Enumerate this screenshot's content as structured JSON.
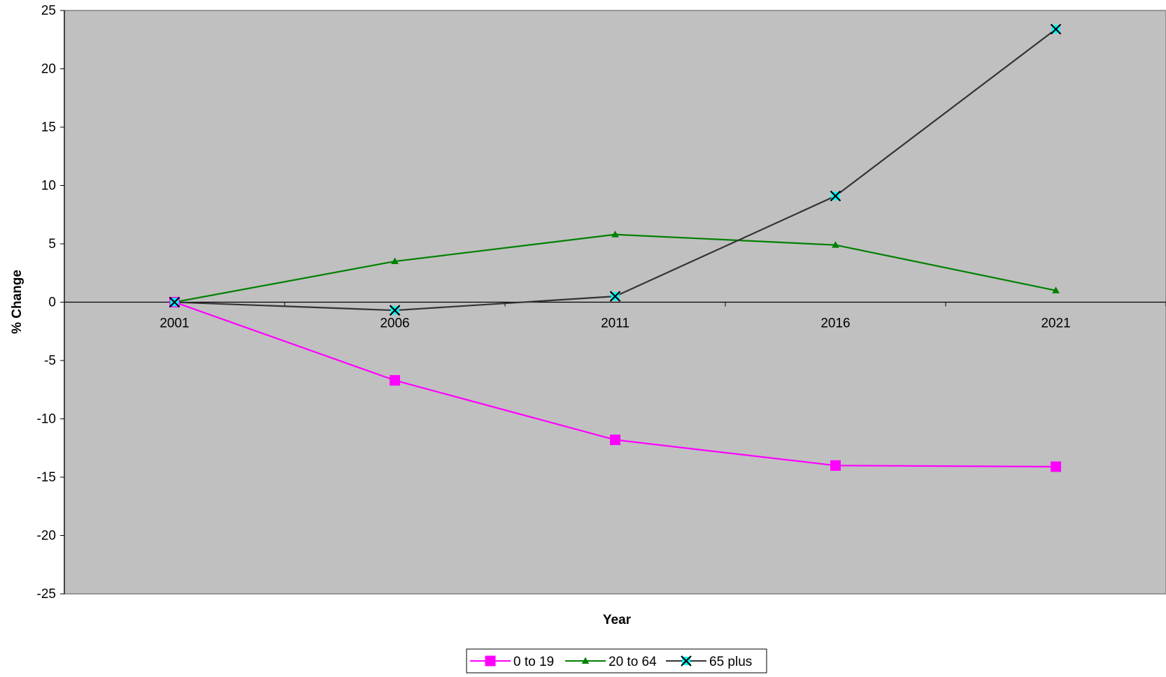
{
  "chart_data": {
    "type": "line",
    "title": "",
    "xlabel": "Year",
    "ylabel": "% Change",
    "categories": [
      "2001",
      "2006",
      "2011",
      "2016",
      "2021"
    ],
    "ylim": [
      -25,
      25
    ],
    "yticks": [
      25,
      20,
      15,
      10,
      5,
      0,
      -5,
      -10,
      -15,
      -20,
      -25
    ],
    "grid": false,
    "legend_position": "bottom",
    "plot_background": "#c0c0c0",
    "series": [
      {
        "name": "0 to 19",
        "values": [
          0,
          -6.7,
          -11.8,
          -14.0,
          -14.1
        ],
        "color": "#ff00ff",
        "marker": "square"
      },
      {
        "name": "20 to 64",
        "values": [
          0,
          3.5,
          5.8,
          4.9,
          1.0
        ],
        "color": "#008000",
        "marker": "triangle"
      },
      {
        "name": "65 plus",
        "values": [
          0,
          -0.7,
          0.5,
          9.1,
          23.4
        ],
        "color": "#333333",
        "marker": "x",
        "marker_fill": "#00ffff"
      }
    ]
  }
}
